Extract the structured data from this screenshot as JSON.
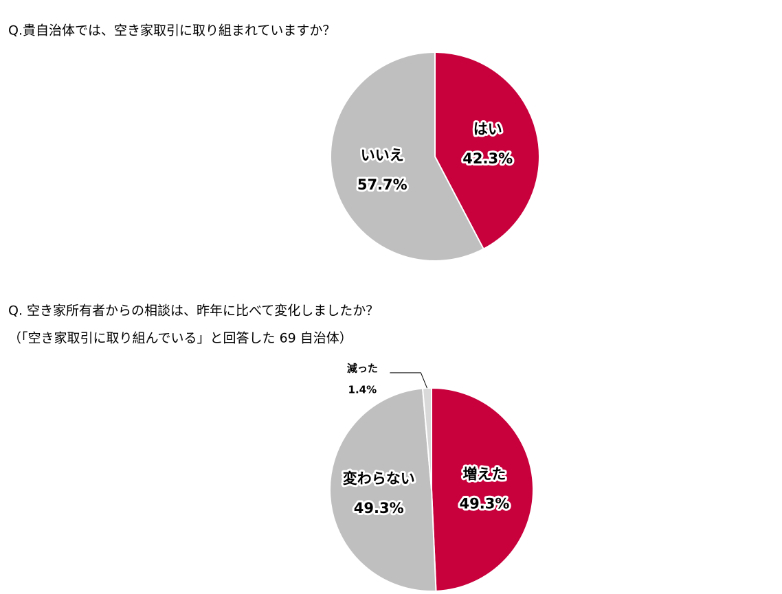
{
  "chart_data": [
    {
      "type": "pie",
      "title": "Q.貴自治体では、空き家取引に取り組まれていますか？",
      "categories": [
        "はい",
        "いいえ"
      ],
      "values": [
        42.3,
        57.7
      ],
      "value_labels": [
        "42.3%",
        "57.7%"
      ],
      "colors": [
        "#c8003c",
        "#bfbfbf"
      ]
    },
    {
      "type": "pie",
      "title": "Q.  空き家所有者からの相談は、昨年に比べて変化しましたか？",
      "subtitle": "（「空き家取引に取り組んでいる」と回答した 69 自治体）",
      "categories": [
        "増えた",
        "変わらない",
        "減った"
      ],
      "values": [
        49.3,
        49.3,
        1.4
      ],
      "value_labels": [
        "49.3%",
        "49.3%",
        "1.4%"
      ],
      "colors": [
        "#c8003c",
        "#bfbfbf",
        "#d9d9d9"
      ]
    }
  ]
}
